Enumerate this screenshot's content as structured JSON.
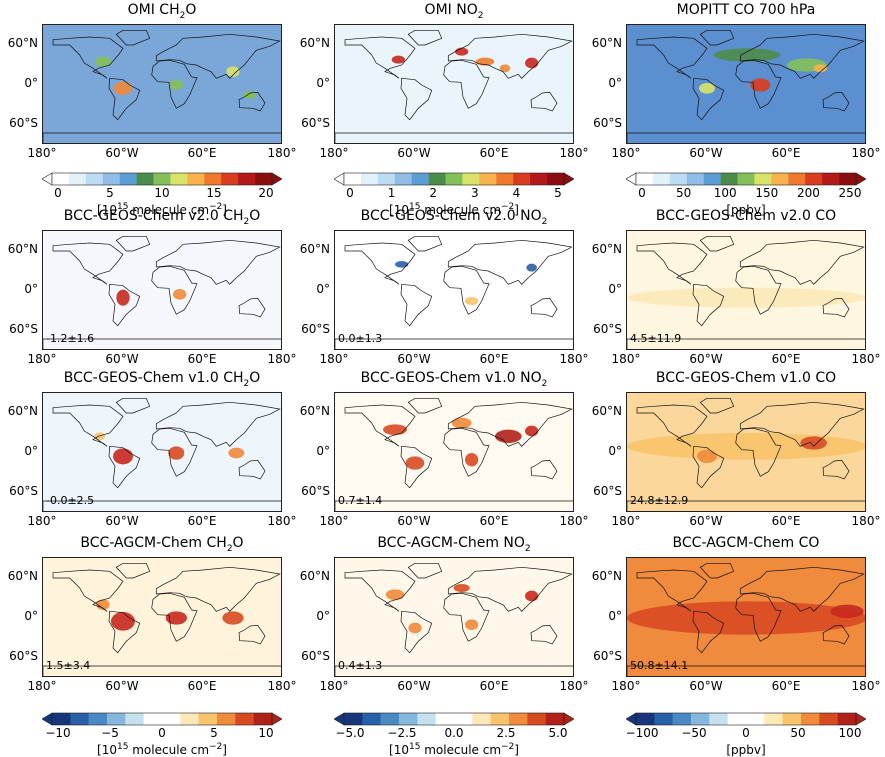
{
  "rows": [
    [
      {
        "title_pre": "OMI CH",
        "title_sub": "2",
        "title_post": "O",
        "bg": "#7aa6d8",
        "stat": ""
      },
      {
        "title_pre": "OMI NO",
        "title_sub": "2",
        "title_post": "",
        "bg": "#eaf4fb",
        "stat": ""
      },
      {
        "title_pre": "MOPITT  CO 700 hPa",
        "title_sub": "",
        "title_post": "",
        "bg": "#5b8fd0",
        "stat": ""
      }
    ],
    [
      {
        "title_pre": "BCC-GEOS-Chem v2.0 CH",
        "title_sub": "2",
        "title_post": "O",
        "bg": "#f4f8fc",
        "stat": "-1.2±1.6"
      },
      {
        "title_pre": "BCC-GEOS-Chem v2.0 NO",
        "title_sub": "2",
        "title_post": "",
        "bg": "#ffffff",
        "stat": "0.0±1.3"
      },
      {
        "title_pre": "BCC-GEOS-Chem v2.0 CO",
        "title_sub": "",
        "title_post": "",
        "bg": "#fff6e0",
        "stat": "4.5±11.9"
      }
    ],
    [
      {
        "title_pre": "BCC-GEOS-Chem v1.0 CH",
        "title_sub": "2",
        "title_post": "O",
        "bg": "#eef5fb",
        "stat": "-0.0±2.5"
      },
      {
        "title_pre": "BCC-GEOS-Chem v1.0 NO",
        "title_sub": "2",
        "title_post": "",
        "bg": "#fffaf0",
        "stat": "0.7±1.4"
      },
      {
        "title_pre": "BCC-GEOS-Chem v1.0 CO",
        "title_sub": "",
        "title_post": "",
        "bg": "#fbd79b",
        "stat": "24.8±12.9"
      }
    ],
    [
      {
        "title_pre": "BCC-AGCM-Chem CH",
        "title_sub": "2",
        "title_post": "O",
        "bg": "#fff3dc",
        "stat": "1.5±3.4"
      },
      {
        "title_pre": "BCC-AGCM-Chem NO",
        "title_sub": "2",
        "title_post": "",
        "bg": "#fff8ea",
        "stat": "0.4±1.3"
      },
      {
        "title_pre": "BCC-AGCM-Chem CO",
        "title_sub": "",
        "title_post": "",
        "bg": "#f08a3c",
        "stat": "50.8±14.1"
      }
    ]
  ],
  "lat_labels": [
    "60°N",
    "0°",
    "60°S"
  ],
  "lon_labels": [
    "180°",
    "60°W",
    "60°E",
    "180°"
  ],
  "colorbars_top": [
    {
      "ticks": [
        "0",
        "5",
        "10",
        "15",
        "20"
      ],
      "unit_pre": "[10",
      "unit_sup": "15",
      "unit_post": " molecule cm",
      "unit_sup2": "−2",
      "unit_end": "]",
      "colors": [
        "#ffffff",
        "#e3f1fb",
        "#bcdcf2",
        "#8fbde3",
        "#5c9dd4",
        "#4c8c4a",
        "#84c05a",
        "#d9e36a",
        "#f8b34c",
        "#ef7a2e",
        "#d93c1f",
        "#b41919",
        "#8c0d0d"
      ]
    },
    {
      "ticks": [
        "0",
        "1",
        "2",
        "3",
        "4",
        "5"
      ],
      "unit_pre": "[10",
      "unit_sup": "15",
      "unit_post": " molecule cm",
      "unit_sup2": "−2",
      "unit_end": "]",
      "colors": [
        "#ffffff",
        "#e3f1fb",
        "#bcdcf2",
        "#8fbde3",
        "#5c9dd4",
        "#4c8c4a",
        "#84c05a",
        "#d9e36a",
        "#f8b34c",
        "#ef7a2e",
        "#d93c1f",
        "#b41919",
        "#8c0d0d"
      ]
    },
    {
      "ticks": [
        "0",
        "50",
        "100",
        "150",
        "200",
        "250"
      ],
      "unit_pre": "[ppbv]",
      "unit_sup": "",
      "unit_post": "",
      "unit_sup2": "",
      "unit_end": "",
      "colors": [
        "#ffffff",
        "#e3f1fb",
        "#bcdcf2",
        "#8fbde3",
        "#5c9dd4",
        "#4c8c4a",
        "#84c05a",
        "#d9e36a",
        "#f8b34c",
        "#ef7a2e",
        "#d93c1f",
        "#b41919",
        "#8c0d0d"
      ]
    }
  ],
  "colorbars_bottom": [
    {
      "ticks": [
        "−10",
        "−5",
        "0",
        "5",
        "10"
      ],
      "unit_pre": "[10",
      "unit_sup": "15",
      "unit_post": " molecule cm",
      "unit_sup2": "−2",
      "unit_end": "]",
      "colors": [
        "#16357a",
        "#2860a8",
        "#4a8ac4",
        "#86b8dd",
        "#c6e0f0",
        "#ffffff",
        "#ffffff",
        "#fde9b8",
        "#f8c36a",
        "#f08a3c",
        "#d84a22",
        "#b02119"
      ]
    },
    {
      "ticks": [
        "−5.0",
        "−2.5",
        "0.0",
        "2.5",
        "5.0"
      ],
      "unit_pre": "[10",
      "unit_sup": "15",
      "unit_post": " molecule cm",
      "unit_sup2": "−2",
      "unit_end": "]",
      "colors": [
        "#16357a",
        "#2860a8",
        "#4a8ac4",
        "#86b8dd",
        "#c6e0f0",
        "#ffffff",
        "#ffffff",
        "#fde9b8",
        "#f8c36a",
        "#f08a3c",
        "#d84a22",
        "#b02119"
      ]
    },
    {
      "ticks": [
        "−100",
        "−50",
        "0",
        "50",
        "100"
      ],
      "unit_pre": "[ppbv]",
      "unit_sup": "",
      "unit_post": "",
      "unit_sup2": "",
      "unit_end": "",
      "colors": [
        "#16357a",
        "#2860a8",
        "#4a8ac4",
        "#86b8dd",
        "#c6e0f0",
        "#ffffff",
        "#ffffff",
        "#fde9b8",
        "#f8c36a",
        "#f08a3c",
        "#d84a22",
        "#b02119"
      ]
    }
  ],
  "colors": {
    "land_outline": "#111111",
    "hotspot_red": "#c8281e",
    "hotspot_orange": "#f08a3c",
    "hotspot_blue": "#2b5fa6"
  }
}
